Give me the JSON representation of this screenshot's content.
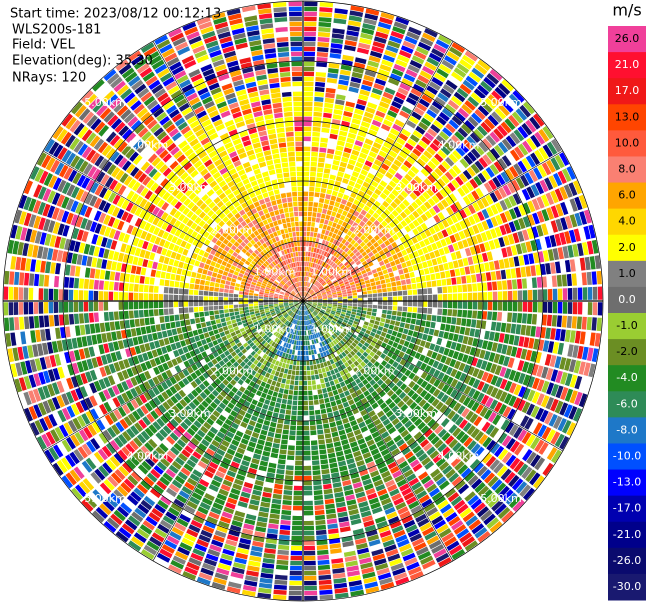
{
  "header": {
    "lines": [
      "Start time: 2023/08/12 00:12:13",
      "WLS200s-181",
      "Field: VEL",
      "Elevation(deg): 35.30",
      "NRays: 120"
    ]
  },
  "chart_data": {
    "type": "ppi",
    "range_rings": [
      {
        "value": 1,
        "label": "1.00km"
      },
      {
        "value": 2,
        "label": "2.00km"
      },
      {
        "value": 3,
        "label": "3.00km"
      },
      {
        "value": 4,
        "label": "4.00km"
      },
      {
        "value": 5,
        "label": "5.00km"
      }
    ],
    "rlim": [
      0,
      5
    ],
    "nrays": 120,
    "colorbar": {
      "unit": "m/s",
      "ticks": [
        {
          "value": 26,
          "label": "26.0"
        },
        {
          "value": 21,
          "label": "21.0"
        },
        {
          "value": 17,
          "label": "17.0"
        },
        {
          "value": 13,
          "label": "13.0"
        },
        {
          "value": 10,
          "label": "10.0"
        },
        {
          "value": 8,
          "label": "8.0"
        },
        {
          "value": 6,
          "label": "6.0"
        },
        {
          "value": 4,
          "label": "4.0"
        },
        {
          "value": 2,
          "label": "2.0"
        },
        {
          "value": 1,
          "label": "1.0"
        },
        {
          "value": 0,
          "label": "0.0"
        },
        {
          "value": -1,
          "label": "-1.0"
        },
        {
          "value": -2,
          "label": "-2.0"
        },
        {
          "value": -4,
          "label": "-4.0"
        },
        {
          "value": -6,
          "label": "-6.0"
        },
        {
          "value": -8,
          "label": "-8.0"
        },
        {
          "value": -10,
          "label": "-10.0"
        },
        {
          "value": -13,
          "label": "-13.0"
        },
        {
          "value": -17,
          "label": "-17.0"
        },
        {
          "value": -21,
          "label": "-21.0"
        },
        {
          "value": -26,
          "label": "-26.0"
        },
        {
          "value": -30,
          "label": "-30.0"
        }
      ],
      "colors": [
        "#f0409a",
        "#ff1030",
        "#f01818",
        "#ff4500",
        "#ff5a3c",
        "#fa8072",
        "#ffa500",
        "#ffd700",
        "#ffff00",
        "#808080",
        "#6e6e6e",
        "#9acd32",
        "#6b8e23",
        "#228b22",
        "#2e8b57",
        "#1e78c8",
        "#0050ff",
        "#0000ff",
        "#0000b0",
        "#00008b",
        "#0a0a6e",
        "#191970"
      ]
    }
  }
}
